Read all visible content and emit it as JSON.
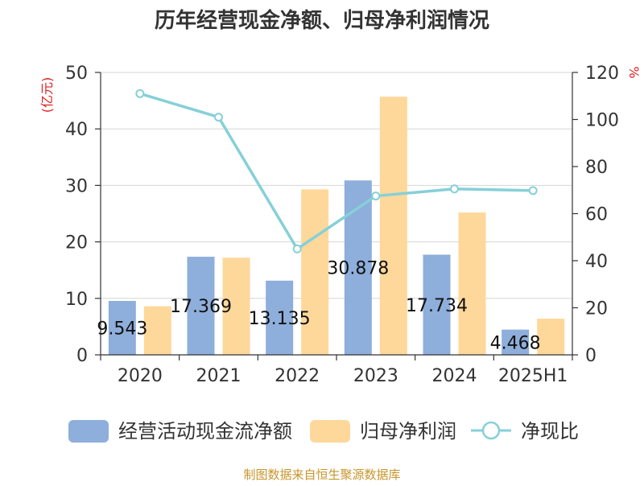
{
  "chart_data": {
    "type": "bar",
    "title": "历年经营现金净额、归母净利润情况",
    "source": "制图数据来自恒生聚源数据库",
    "categories": [
      "2020",
      "2021",
      "2022",
      "2023",
      "2024",
      "2025H1"
    ],
    "y_left": {
      "label": "(亿元)",
      "min": 0,
      "max": 50,
      "ticks": [
        0,
        10,
        20,
        30,
        40,
        50
      ]
    },
    "y_right": {
      "label": "%",
      "min": 0,
      "max": 120,
      "ticks": [
        0,
        20,
        40,
        60,
        80,
        100,
        120
      ]
    },
    "grid": true,
    "legend_position": "bottom",
    "series": [
      {
        "name": "经营活动现金流净额",
        "type": "bar",
        "axis": "left",
        "color": "#8eaedb",
        "values": [
          9.543,
          17.369,
          13.135,
          30.878,
          17.734,
          4.468
        ],
        "labels": [
          "9.543",
          "17.369",
          "13.135",
          "30.878",
          "17.734",
          "4.468"
        ]
      },
      {
        "name": "归母净利润",
        "type": "bar",
        "axis": "left",
        "color": "#fed89a",
        "values": [
          8.6,
          17.2,
          29.3,
          45.7,
          25.2,
          6.4
        ]
      },
      {
        "name": "净现比",
        "type": "line",
        "axis": "right",
        "color": "#86d0d8",
        "values": [
          111,
          101,
          45,
          67.5,
          70.5,
          69.8
        ]
      }
    ]
  }
}
